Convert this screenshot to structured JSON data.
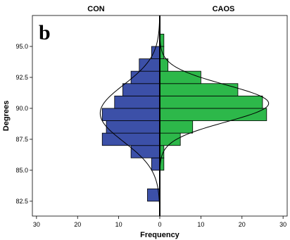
{
  "chart_data": {
    "type": "bar",
    "orientation": "horizontal-back-to-back",
    "panel_letter": "b",
    "panels": [
      "CON",
      "CAOS"
    ],
    "xlabel": "Frequency",
    "ylabel": "Degrees",
    "ylim": [
      81.3,
      97.5
    ],
    "yticks": [
      82.5,
      85.0,
      87.5,
      90.0,
      92.5,
      95.0
    ],
    "ytick_labels": [
      "82.5",
      "85.0",
      "87.5",
      "90.0",
      "92.5",
      "95.0"
    ],
    "xlim": [
      -31,
      31
    ],
    "xticks": [
      -30,
      -20,
      -10,
      0,
      10,
      20,
      30
    ],
    "xtick_labels": [
      "30",
      "20",
      "10",
      "0",
      "10",
      "20",
      "30"
    ],
    "bin_width": 1.0,
    "series": [
      {
        "name": "CON",
        "color": "#3c50a8",
        "side": "left",
        "bins": [
          {
            "center": 83.0,
            "value": 3
          },
          {
            "center": 85.5,
            "value": 2
          },
          {
            "center": 86.5,
            "value": 7
          },
          {
            "center": 87.5,
            "value": 14
          },
          {
            "center": 88.5,
            "value": 13
          },
          {
            "center": 89.5,
            "value": 14
          },
          {
            "center": 90.5,
            "value": 11
          },
          {
            "center": 91.5,
            "value": 9
          },
          {
            "center": 92.5,
            "value": 7
          },
          {
            "center": 93.5,
            "value": 5
          },
          {
            "center": 94.5,
            "value": 2
          }
        ],
        "normal_fit": {
          "mean": 89.6,
          "sd": 2.3,
          "peak": 14.5
        }
      },
      {
        "name": "CAOS",
        "color": "#2db84a",
        "side": "right",
        "bins": [
          {
            "center": 85.5,
            "value": 1
          },
          {
            "center": 86.5,
            "value": 1
          },
          {
            "center": 87.5,
            "value": 5
          },
          {
            "center": 88.5,
            "value": 8
          },
          {
            "center": 89.5,
            "value": 26
          },
          {
            "center": 90.5,
            "value": 25
          },
          {
            "center": 91.5,
            "value": 19
          },
          {
            "center": 92.5,
            "value": 10
          },
          {
            "center": 93.5,
            "value": 2
          },
          {
            "center": 94.5,
            "value": 1
          },
          {
            "center": 95.5,
            "value": 1
          }
        ],
        "normal_fit": {
          "mean": 90.4,
          "sd": 1.5,
          "peak": 26.5
        }
      }
    ],
    "grid": false,
    "legend": "none"
  }
}
